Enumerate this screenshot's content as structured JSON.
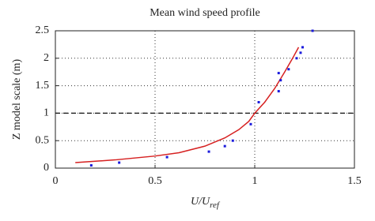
{
  "chart_data": {
    "type": "line",
    "title": "Mean wind speed profile",
    "xlabel": "U/U",
    "xlabel_sub": "ref",
    "ylabel": "Z model scale (m)",
    "xlim": [
      0,
      1.5
    ],
    "ylim": [
      0,
      2.5
    ],
    "xticks": [
      0,
      0.5,
      1,
      1.5
    ],
    "yticks": [
      0,
      0.5,
      1,
      1.5,
      2,
      2.5
    ],
    "grid": true,
    "hline": 1,
    "series": [
      {
        "type": "line",
        "color": "#d62020",
        "x": [
          0.1,
          0.3,
          0.5,
          0.62,
          0.75,
          0.85,
          0.92,
          0.97,
          1.0,
          1.05,
          1.1,
          1.15,
          1.19,
          1.22
        ],
        "values": [
          0.1,
          0.15,
          0.22,
          0.28,
          0.4,
          0.55,
          0.7,
          0.85,
          1.0,
          1.2,
          1.45,
          1.75,
          2.0,
          2.2
        ]
      },
      {
        "type": "scatter",
        "color": "#1a1adc",
        "x": [
          0.18,
          0.32,
          0.56,
          0.77,
          0.85,
          0.89,
          0.98,
          1.02,
          1.12,
          1.13,
          1.12,
          1.17,
          1.21,
          1.23,
          1.24,
          1.29
        ],
        "values": [
          0.05,
          0.1,
          0.2,
          0.3,
          0.4,
          0.5,
          0.8,
          1.2,
          1.4,
          1.6,
          1.73,
          1.8,
          2.0,
          2.1,
          2.2,
          2.5
        ]
      }
    ]
  }
}
